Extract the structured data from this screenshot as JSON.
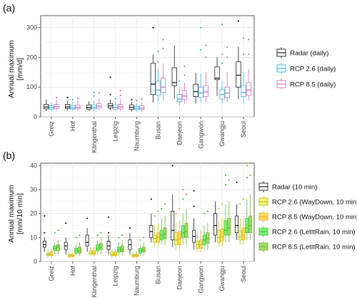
{
  "chart_data": [
    {
      "panel": "(a)",
      "type": "box",
      "ylabel_line1": "Annual maximum",
      "ylabel_line2": "[mm/d]",
      "ylim": [
        0,
        340
      ],
      "yticks": [
        0,
        100,
        200,
        300
      ],
      "grid": true,
      "legend_position": "right",
      "categories": [
        "Greiz",
        "Hof",
        "Klingenthal",
        "Leipzig",
        "Naumburg",
        "Busan",
        "Daejeon",
        "Gangwon",
        "Gwangju",
        "Seoul"
      ],
      "series": [
        {
          "name": "Radar (daily)",
          "color": "#222222",
          "fill": "#ffffff",
          "boxes": [
            {
              "min": 20,
              "q1": 27,
              "median": 33,
              "q3": 42,
              "max": 58,
              "outliers": []
            },
            {
              "min": 22,
              "q1": 28,
              "median": 33,
              "q3": 42,
              "max": 55,
              "outliers": [
                65
              ]
            },
            {
              "min": 20,
              "q1": 26,
              "median": 32,
              "q3": 40,
              "max": 52,
              "outliers": []
            },
            {
              "min": 22,
              "q1": 30,
              "median": 37,
              "q3": 45,
              "max": 58,
              "outliers": [
                75,
                133
              ]
            },
            {
              "min": 18,
              "q1": 25,
              "median": 32,
              "q3": 40,
              "max": 50,
              "outliers": [
                58
              ]
            },
            {
              "min": 48,
              "q1": 75,
              "median": 110,
              "q3": 180,
              "max": 210,
              "outliers": [
                300
              ]
            },
            {
              "min": 60,
              "q1": 105,
              "median": 115,
              "q3": 165,
              "max": 240,
              "outliers": []
            },
            {
              "min": 45,
              "q1": 68,
              "median": 85,
              "q3": 110,
              "max": 148,
              "outliers": []
            },
            {
              "min": 70,
              "q1": 125,
              "median": 130,
              "q3": 168,
              "max": 200,
              "outliers": []
            },
            {
              "min": 60,
              "q1": 100,
              "median": 140,
              "q3": 185,
              "max": 235,
              "outliers": [
                322
              ]
            }
          ]
        },
        {
          "name": "RCP 2.6 (daily)",
          "color": "#3fb6e8",
          "fill": "#ffffff",
          "boxes": [
            {
              "min": 18,
              "q1": 25,
              "median": 31,
              "q3": 37,
              "max": 48,
              "outliers": []
            },
            {
              "min": 20,
              "q1": 26,
              "median": 30,
              "q3": 37,
              "max": 50,
              "outliers": [
                58
              ]
            },
            {
              "min": 20,
              "q1": 27,
              "median": 32,
              "q3": 40,
              "max": 55,
              "outliers": [
                70,
                82
              ]
            },
            {
              "min": 20,
              "q1": 26,
              "median": 32,
              "q3": 40,
              "max": 52,
              "outliers": [
                62
              ]
            },
            {
              "min": 18,
              "q1": 24,
              "median": 29,
              "q3": 35,
              "max": 44,
              "outliers": [
                55
              ]
            },
            {
              "min": 50,
              "q1": 72,
              "median": 90,
              "q3": 120,
              "max": 160,
              "outliers": [
                185,
                220
              ]
            },
            {
              "min": 38,
              "q1": 50,
              "median": 60,
              "q3": 75,
              "max": 100,
              "outliers": [
                120
              ]
            },
            {
              "min": 50,
              "q1": 65,
              "median": 80,
              "q3": 100,
              "max": 145,
              "outliers": [
                225,
                300
              ]
            },
            {
              "min": 45,
              "q1": 60,
              "median": 75,
              "q3": 92,
              "max": 120,
              "outliers": [
                180,
                210,
                310
              ]
            },
            {
              "min": 45,
              "q1": 68,
              "median": 82,
              "q3": 105,
              "max": 150,
              "outliers": [
                210,
                265
              ]
            }
          ]
        },
        {
          "name": "RCP 8.5 (daily)",
          "color": "#d672b8",
          "fill": "#ffffff",
          "boxes": [
            {
              "min": 20,
              "q1": 28,
              "median": 34,
              "q3": 42,
              "max": 58,
              "outliers": [
                65
              ]
            },
            {
              "min": 20,
              "q1": 27,
              "median": 32,
              "q3": 40,
              "max": 55,
              "outliers": [
                62
              ]
            },
            {
              "min": 22,
              "q1": 30,
              "median": 36,
              "q3": 45,
              "max": 62,
              "outliers": [
                80
              ]
            },
            {
              "min": 20,
              "q1": 27,
              "median": 33,
              "q3": 42,
              "max": 60,
              "outliers": [
                72,
                88
              ]
            },
            {
              "min": 18,
              "q1": 25,
              "median": 30,
              "q3": 37,
              "max": 48,
              "outliers": [
                60
              ]
            },
            {
              "min": 55,
              "q1": 82,
              "median": 100,
              "q3": 130,
              "max": 180,
              "outliers": [
                230,
                260
              ]
            },
            {
              "min": 45,
              "q1": 58,
              "median": 70,
              "q3": 88,
              "max": 115,
              "outliers": [
                140,
                170
              ]
            },
            {
              "min": 50,
              "q1": 68,
              "median": 84,
              "q3": 105,
              "max": 150,
              "outliers": [
                200,
                240
              ]
            },
            {
              "min": 50,
              "q1": 65,
              "median": 80,
              "q3": 100,
              "max": 150,
              "outliers": [
                200,
                235
              ]
            },
            {
              "min": 55,
              "q1": 72,
              "median": 90,
              "q3": 115,
              "max": 160,
              "outliers": [
                210,
                260
              ]
            }
          ]
        }
      ]
    },
    {
      "panel": "(b)",
      "type": "box",
      "ylabel_line1": "Annual maximum",
      "ylabel_line2": "[mm/10 min]",
      "ylim": [
        0,
        41
      ],
      "yticks": [
        0,
        10,
        20,
        30,
        40
      ],
      "grid": true,
      "legend_position": "right",
      "categories": [
        "Greiz",
        "Hof",
        "Klingenthal",
        "Leipzig",
        "Naumburg",
        "Busan",
        "Daejeon",
        "Gangwon",
        "Gwangju",
        "Seoul"
      ],
      "series": [
        {
          "name": "Radar (10 min)",
          "color": "#222222",
          "fill": "#ffffff",
          "boxes": [
            {
              "min": 4,
              "q1": 6,
              "median": 7,
              "q3": 8.5,
              "max": 10,
              "outliers": [
                12,
                19
              ]
            },
            {
              "min": 3,
              "q1": 5,
              "median": 6.5,
              "q3": 8,
              "max": 10,
              "outliers": [
                16
              ]
            },
            {
              "min": 4,
              "q1": 6.5,
              "median": 8,
              "q3": 11,
              "max": 14,
              "outliers": [
                18
              ]
            },
            {
              "min": 3,
              "q1": 5,
              "median": 6.5,
              "q3": 8.5,
              "max": 11,
              "outliers": [
                12,
                18.5
              ]
            },
            {
              "min": 3,
              "q1": 5,
              "median": 7,
              "q3": 9,
              "max": 12,
              "outliers": [
                14
              ]
            },
            {
              "min": 8,
              "q1": 10,
              "median": 12.5,
              "q3": 15,
              "max": 20,
              "outliers": [
                26
              ]
            },
            {
              "min": 6,
              "q1": 9,
              "median": 13,
              "q3": 21,
              "max": 28,
              "outliers": [
                40
              ]
            },
            {
              "min": 5,
              "q1": 8,
              "median": 10.5,
              "q3": 13,
              "max": 18,
              "outliers": [
                23,
                29.5
              ]
            },
            {
              "min": 8,
              "q1": 11,
              "median": 15,
              "q3": 20,
              "max": 25,
              "outliers": []
            },
            {
              "min": 9,
              "q1": 12,
              "median": 15,
              "q3": 19,
              "max": 24,
              "outliers": [
                33
              ]
            }
          ]
        },
        {
          "name": "RCP 2.6 (WayDown, 10 min)",
          "color": "#b5c92a",
          "fill": "#f2f57a",
          "boxes": [
            {
              "min": 1.5,
              "q1": 2.5,
              "median": 3,
              "q3": 3.5,
              "max": 5,
              "outliers": []
            },
            {
              "min": 1.5,
              "q1": 2,
              "median": 2.5,
              "q3": 3,
              "max": 4,
              "outliers": []
            },
            {
              "min": 2,
              "q1": 3,
              "median": 3.5,
              "q3": 4.5,
              "max": 6,
              "outliers": []
            },
            {
              "min": 1.5,
              "q1": 2.5,
              "median": 3,
              "q3": 4,
              "max": 5,
              "outliers": []
            },
            {
              "min": 1.5,
              "q1": 2,
              "median": 2.5,
              "q3": 3,
              "max": 4,
              "outliers": []
            },
            {
              "min": 6,
              "q1": 8,
              "median": 9.5,
              "q3": 11,
              "max": 15,
              "outliers": [
                19
              ]
            },
            {
              "min": 5,
              "q1": 7,
              "median": 9,
              "q3": 12,
              "max": 16,
              "outliers": [
                20
              ]
            },
            {
              "min": 4,
              "q1": 5.5,
              "median": 7,
              "q3": 8.5,
              "max": 12,
              "outliers": []
            },
            {
              "min": 6,
              "q1": 8,
              "median": 10,
              "q3": 13,
              "max": 17,
              "outliers": [
                22
              ]
            },
            {
              "min": 7,
              "q1": 9,
              "median": 10.5,
              "q3": 13,
              "max": 18,
              "outliers": [
                24
              ]
            }
          ]
        },
        {
          "name": "RCP 8.5 (WayDown, 10 min)",
          "color": "#e3b520",
          "fill": "#ffd964",
          "boxes": [
            {
              "min": 1.5,
              "q1": 2.5,
              "median": 3,
              "q3": 4,
              "max": 5,
              "outliers": []
            },
            {
              "min": 1.5,
              "q1": 2,
              "median": 2.5,
              "q3": 3,
              "max": 4,
              "outliers": []
            },
            {
              "min": 2,
              "q1": 3,
              "median": 3.5,
              "q3": 4.5,
              "max": 6,
              "outliers": []
            },
            {
              "min": 1.5,
              "q1": 2.5,
              "median": 3,
              "q3": 4,
              "max": 5,
              "outliers": []
            },
            {
              "min": 1.5,
              "q1": 2,
              "median": 2.5,
              "q3": 3,
              "max": 4,
              "outliers": []
            },
            {
              "min": 6,
              "q1": 8,
              "median": 10,
              "q3": 12,
              "max": 16,
              "outliers": [
                21
              ]
            },
            {
              "min": 5,
              "q1": 7,
              "median": 9.5,
              "q3": 12.5,
              "max": 17,
              "outliers": [
                22
              ]
            },
            {
              "min": 4,
              "q1": 5.5,
              "median": 7,
              "q3": 9,
              "max": 13,
              "outliers": []
            },
            {
              "min": 6,
              "q1": 8.5,
              "median": 10.5,
              "q3": 13.5,
              "max": 18,
              "outliers": [
                24
              ]
            },
            {
              "min": 7,
              "q1": 9,
              "median": 11,
              "q3": 14,
              "max": 19,
              "outliers": [
                26
              ]
            }
          ]
        },
        {
          "name": "RCP 2.6 (LetItRain, 10 min)",
          "color": "#3fcf3f",
          "fill": "#7ef07a",
          "boxes": [
            {
              "min": 3,
              "q1": 4.5,
              "median": 5.5,
              "q3": 6.5,
              "max": 8,
              "outliers": [
                12
              ]
            },
            {
              "min": 2.5,
              "q1": 3.5,
              "median": 4.5,
              "q3": 5.5,
              "max": 7,
              "outliers": [
                10
              ]
            },
            {
              "min": 3,
              "q1": 4.5,
              "median": 5.5,
              "q3": 7,
              "max": 9,
              "outliers": [
                11
              ]
            },
            {
              "min": 2.5,
              "q1": 4,
              "median": 5,
              "q3": 6,
              "max": 8,
              "outliers": [
                10
              ]
            },
            {
              "min": 2.5,
              "q1": 3.5,
              "median": 4.5,
              "q3": 5.5,
              "max": 7,
              "outliers": [
                9
              ]
            },
            {
              "min": 7,
              "q1": 9,
              "median": 11,
              "q3": 13,
              "max": 18,
              "outliers": [
                22
              ]
            },
            {
              "min": 7,
              "q1": 10,
              "median": 12,
              "q3": 15,
              "max": 20,
              "outliers": [
                26,
                30
              ]
            },
            {
              "min": 5,
              "q1": 7,
              "median": 9,
              "q3": 11,
              "max": 15,
              "outliers": [
                20
              ]
            },
            {
              "min": 8,
              "q1": 11,
              "median": 13,
              "q3": 17,
              "max": 24,
              "outliers": [
                32,
                36
              ]
            },
            {
              "min": 9,
              "q1": 12,
              "median": 14,
              "q3": 18,
              "max": 26,
              "outliers": [
                35,
                40
              ]
            }
          ]
        },
        {
          "name": "RCP 8.5 (LetItRain, 10 min)",
          "color": "#7cb83a",
          "fill": "#9fd86a",
          "boxes": [
            {
              "min": 3,
              "q1": 4.5,
              "median": 6,
              "q3": 7,
              "max": 9,
              "outliers": [
                13
              ]
            },
            {
              "min": 2.5,
              "q1": 3.5,
              "median": 4.5,
              "q3": 6,
              "max": 8,
              "outliers": [
                11
              ]
            },
            {
              "min": 3,
              "q1": 5,
              "median": 6,
              "q3": 7.5,
              "max": 10,
              "outliers": [
                12
              ]
            },
            {
              "min": 2.5,
              "q1": 4,
              "median": 5,
              "q3": 6.5,
              "max": 9,
              "outliers": [
                11
              ]
            },
            {
              "min": 2.5,
              "q1": 4,
              "median": 5,
              "q3": 6,
              "max": 8,
              "outliers": [
                10
              ]
            },
            {
              "min": 7,
              "q1": 9.5,
              "median": 11.5,
              "q3": 14,
              "max": 19,
              "outliers": [
                24
              ]
            },
            {
              "min": 7,
              "q1": 10,
              "median": 12.5,
              "q3": 16,
              "max": 22,
              "outliers": [
                28
              ]
            },
            {
              "min": 5,
              "q1": 7.5,
              "median": 9.5,
              "q3": 12,
              "max": 16,
              "outliers": [
                21
              ]
            },
            {
              "min": 8,
              "q1": 11,
              "median": 14,
              "q3": 18,
              "max": 25,
              "outliers": [
                34
              ]
            },
            {
              "min": 9,
              "q1": 12,
              "median": 15,
              "q3": 19,
              "max": 28,
              "outliers": [
                36,
                41
              ]
            }
          ]
        }
      ]
    }
  ]
}
